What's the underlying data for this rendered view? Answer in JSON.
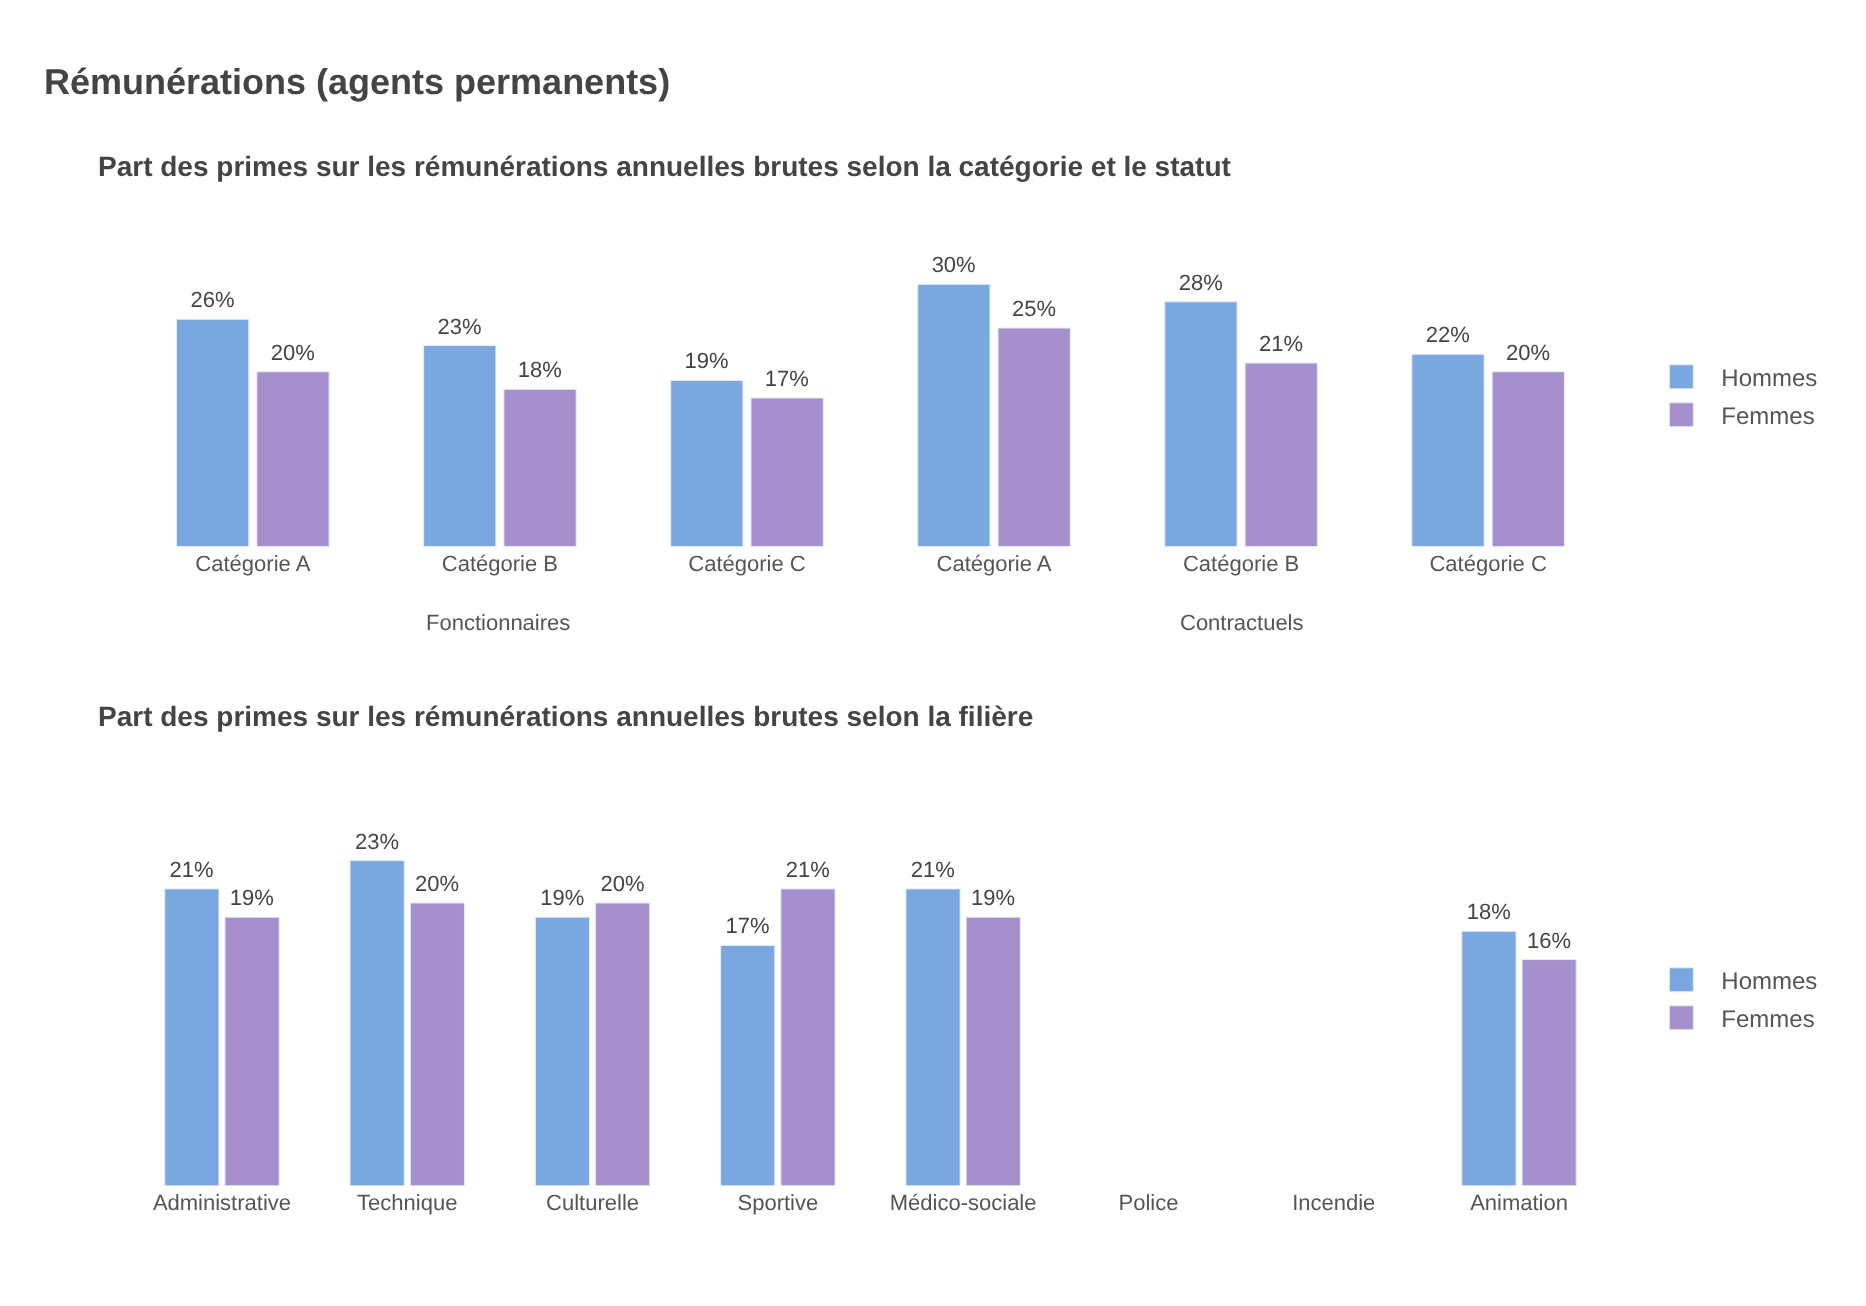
{
  "chart_data": [
    {
      "type": "bar",
      "title": "Rémunérations (agents permanents)",
      "subtitle": "Part des primes sur les rémunérations annuelles brutes selon la catégorie et le statut",
      "categories": [
        "Catégorie A",
        "Catégorie B",
        "Catégorie C",
        "Catégorie A",
        "Catégorie B",
        "Catégorie C"
      ],
      "series": [
        {
          "name": "Hommes",
          "color": "#7ba7e0",
          "values": [
            26,
            23,
            19,
            30,
            28,
            22
          ],
          "value_labels": [
            "26%",
            "23%",
            "19%",
            "30%",
            "28%",
            "22%"
          ]
        },
        {
          "name": "Femmes",
          "color": "#a58fcc",
          "values": [
            20,
            18,
            17,
            25,
            21,
            20
          ],
          "value_labels": [
            "20%",
            "18%",
            "17%",
            "25%",
            "21%",
            "20%"
          ]
        }
      ],
      "annotations": [
        "Fonctionnaires",
        "Contractuels"
      ],
      "legend": "right"
    },
    {
      "type": "bar",
      "title": "Part des primes sur les rémunérations annuelles brutes selon la filière",
      "categories": [
        "Administrative",
        "Technique",
        "Culturelle",
        "Sportive",
        "Médico-sociale",
        "Police",
        "Incendie",
        "Animation"
      ],
      "series": [
        {
          "name": "Hommes",
          "color": "#7ba7e0",
          "values": [
            21,
            23,
            19,
            17,
            21,
            null,
            null,
            18
          ],
          "value_labels": [
            "21%",
            "23%",
            "19%",
            "17%",
            "21%",
            null,
            null,
            "18%"
          ]
        },
        {
          "name": "Femmes",
          "color": "#a58fcc",
          "values": [
            19,
            20,
            20,
            21,
            19,
            null,
            null,
            16
          ],
          "value_labels": [
            "19%",
            "20%",
            "20%",
            "21%",
            "19%",
            null,
            null,
            "16%"
          ]
        }
      ],
      "legend": "right"
    }
  ]
}
